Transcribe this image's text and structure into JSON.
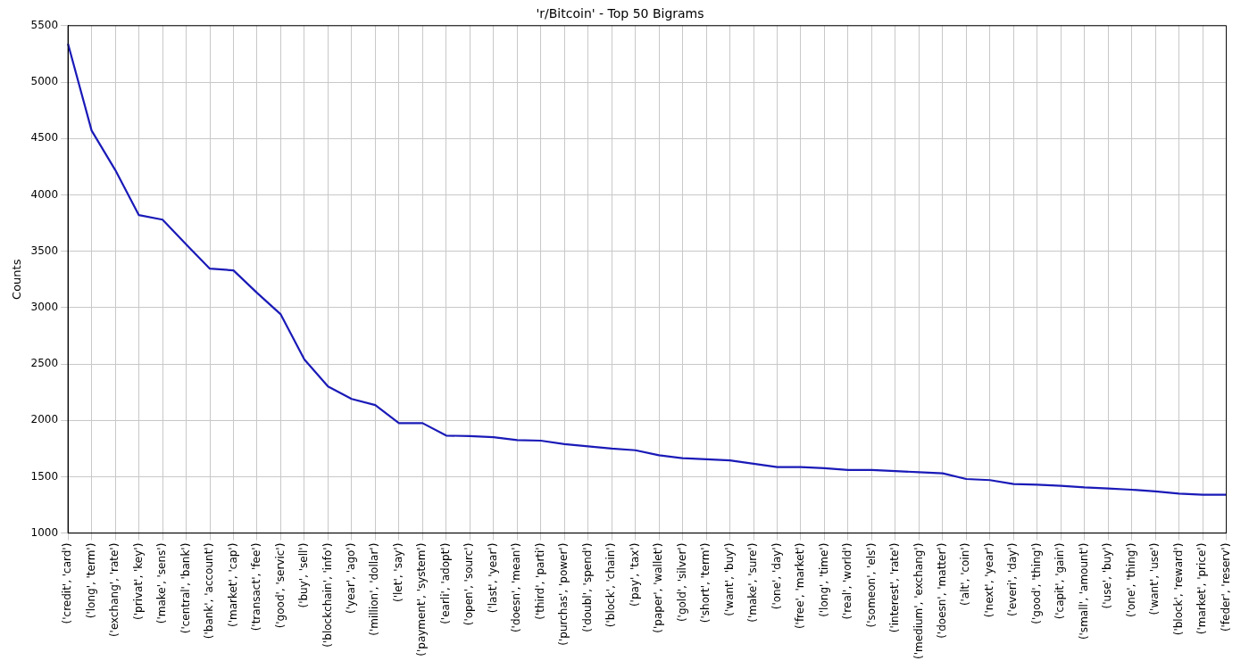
{
  "chart_data": {
    "type": "line",
    "title": "'r/Bitcoin' - Top 50 Bigrams",
    "ylabel": "Counts",
    "categories": [
      "('credit', 'card')",
      "('long', 'term')",
      "('exchang', 'rate')",
      "('privat', 'key')",
      "('make', 'sens')",
      "('central', 'bank')",
      "('bank', 'account')",
      "('market', 'cap')",
      "('transact', 'fee')",
      "('good', 'servic')",
      "('buy', 'sell')",
      "('blockchain', 'info')",
      "('year', 'ago')",
      "('million', 'dollar')",
      "('let', 'say')",
      "('payment', 'system')",
      "('earli', 'adopt')",
      "('open', 'sourc')",
      "('last', 'year')",
      "('doesn', 'mean')",
      "('third', 'parti')",
      "('purchas', 'power')",
      "('doubl', 'spend')",
      "('block', 'chain')",
      "('pay', 'tax')",
      "('paper', 'wallet')",
      "('gold', 'silver')",
      "('short', 'term')",
      "('want', 'buy')",
      "('make', 'sure')",
      "('one', 'day')",
      "('free', 'market')",
      "('long', 'time')",
      "('real', 'world')",
      "('someon', 'els')",
      "('interest', 'rate')",
      "('medium', 'exchang')",
      "('doesn', 'matter')",
      "('alt', 'coin')",
      "('next', 'year')",
      "('everi', 'day')",
      "('good', 'thing')",
      "('capit', 'gain')",
      "('small', 'amount')",
      "('use', 'buy')",
      "('one', 'thing')",
      "('want', 'use')",
      "('block', 'reward')",
      "('market', 'price')",
      "('feder', 'reserv')"
    ],
    "series": [
      {
        "color": "#1a1ab8",
        "values": [
          5340,
          4570,
          4220,
          3820,
          3780,
          3560,
          3345,
          3330,
          3130,
          2940,
          2540,
          2300,
          2190,
          2135,
          1975,
          1975,
          1865,
          1860,
          1850,
          1825,
          1820,
          1790,
          1770,
          1750,
          1735,
          1690,
          1665,
          1655,
          1645,
          1615,
          1585,
          1585,
          1575,
          1560,
          1560,
          1550,
          1540,
          1530,
          1480,
          1470,
          1435,
          1430,
          1420,
          1405,
          1395,
          1385,
          1370,
          1350,
          1340,
          1340
        ]
      }
    ],
    "ylim": [
      1000,
      5500
    ],
    "yticks": [
      1000,
      1500,
      2000,
      2500,
      3000,
      3500,
      4000,
      4500,
      5000,
      5500
    ],
    "grid": true,
    "legend": false,
    "marker": "none",
    "line_style": "solid"
  }
}
